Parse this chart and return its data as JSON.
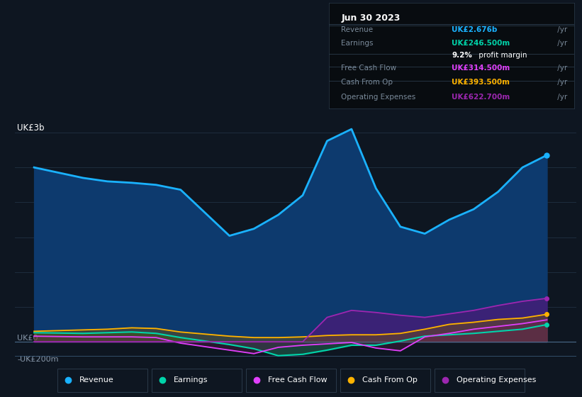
{
  "bg_color": "#0e1621",
  "plot_bg_color": "#0e1621",
  "years": [
    2013,
    2014,
    2014.5,
    2015,
    2015.5,
    2016,
    2017,
    2017.5,
    2018,
    2018.5,
    2019,
    2019.5,
    2020,
    2020.5,
    2021,
    2021.5,
    2022,
    2022.5,
    2023,
    2023.5
  ],
  "revenue": [
    2.5,
    2.35,
    2.3,
    2.28,
    2.25,
    2.18,
    1.52,
    1.62,
    1.82,
    2.1,
    2.88,
    3.05,
    2.2,
    1.65,
    1.55,
    1.75,
    1.9,
    2.15,
    2.5,
    2.676
  ],
  "earnings": [
    0.13,
    0.12,
    0.13,
    0.14,
    0.12,
    0.06,
    -0.04,
    -0.1,
    -0.2,
    -0.18,
    -0.12,
    -0.05,
    -0.05,
    0.01,
    0.08,
    0.1,
    0.12,
    0.15,
    0.18,
    0.246
  ],
  "free_cash_flow": [
    0.08,
    0.07,
    0.07,
    0.07,
    0.06,
    -0.02,
    -0.12,
    -0.17,
    -0.08,
    -0.05,
    -0.03,
    -0.01,
    -0.09,
    -0.13,
    0.07,
    0.12,
    0.18,
    0.22,
    0.26,
    0.314
  ],
  "cash_from_op": [
    0.15,
    0.17,
    0.18,
    0.2,
    0.19,
    0.14,
    0.08,
    0.06,
    0.06,
    0.07,
    0.09,
    0.1,
    0.1,
    0.12,
    0.18,
    0.25,
    0.28,
    0.32,
    0.34,
    0.394
  ],
  "operating_expenses": [
    0.0,
    0.0,
    0.0,
    0.0,
    0.0,
    0.0,
    0.0,
    0.0,
    0.0,
    0.0,
    0.35,
    0.45,
    0.42,
    0.38,
    0.35,
    0.4,
    0.45,
    0.52,
    0.58,
    0.623
  ],
  "revenue_color": "#1ab2ff",
  "earnings_color": "#00d4aa",
  "free_cash_flow_color": "#e040fb",
  "cash_from_op_color": "#ffb300",
  "operating_expenses_color": "#9c27b0",
  "ylabel_top": "UK£3b",
  "ylabel_zero": "UK£0",
  "ylabel_neg": "-UK£200m",
  "ylim_min": -0.28,
  "ylim_max": 3.25,
  "xlim_min": 2012.6,
  "xlim_max": 2024.1,
  "xticks": [
    2013,
    2014,
    2015,
    2016,
    2017,
    2018,
    2019,
    2020,
    2021,
    2022,
    2023
  ],
  "grid_color": "#1e2d3d",
  "text_color": "#8898aa",
  "infobox": {
    "title": "Jun 30 2023",
    "rows": [
      {
        "label": "Revenue",
        "value": "UK£2.676b",
        "suffix": "/yr",
        "value_color": "#1ab2ff"
      },
      {
        "label": "Earnings",
        "value": "UK£246.500m",
        "suffix": "/yr",
        "value_color": "#00d4aa"
      },
      {
        "label": "",
        "value": "9.2%",
        "suffix": " profit margin",
        "value_color": "#ffffff"
      },
      {
        "label": "Free Cash Flow",
        "value": "UK£314.500m",
        "suffix": "/yr",
        "value_color": "#e040fb"
      },
      {
        "label": "Cash From Op",
        "value": "UK£393.500m",
        "suffix": "/yr",
        "value_color": "#ffb300"
      },
      {
        "label": "Operating Expenses",
        "value": "UK£622.700m",
        "suffix": "/yr",
        "value_color": "#9c27b0"
      }
    ]
  },
  "legend": [
    {
      "label": "Revenue",
      "color": "#1ab2ff"
    },
    {
      "label": "Earnings",
      "color": "#00d4aa"
    },
    {
      "label": "Free Cash Flow",
      "color": "#e040fb"
    },
    {
      "label": "Cash From Op",
      "color": "#ffb300"
    },
    {
      "label": "Operating Expenses",
      "color": "#9c27b0"
    }
  ]
}
